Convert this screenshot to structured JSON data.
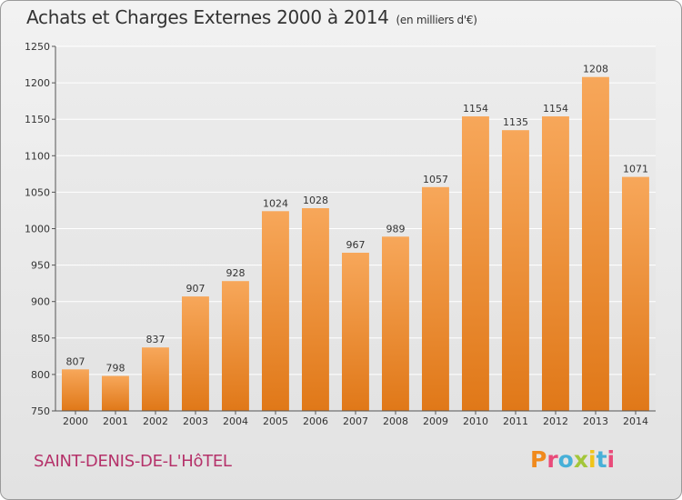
{
  "header": {
    "title": "Achats et Charges Externes 2000 à 2014",
    "unit": "(en milliers d'€)"
  },
  "footer": {
    "town": "SAINT-DENIS-DE-L'HôTEL",
    "brand": "Proxiti"
  },
  "colors": {
    "bar_top": "#f7a75a",
    "bar_bottom": "#e07818",
    "town": "#b5326a"
  },
  "chart_data": {
    "type": "bar",
    "title": "Achats et Charges Externes 2000 à 2014",
    "categories": [
      "2000",
      "2001",
      "2002",
      "2003",
      "2004",
      "2005",
      "2006",
      "2007",
      "2008",
      "2009",
      "2010",
      "2011",
      "2012",
      "2013",
      "2014"
    ],
    "values": [
      807,
      798,
      837,
      907,
      928,
      1024,
      1028,
      967,
      989,
      1057,
      1154,
      1135,
      1154,
      1208,
      1071
    ],
    "ylim": [
      750,
      1250
    ],
    "yticks": [
      750,
      800,
      850,
      900,
      950,
      1000,
      1050,
      1100,
      1150,
      1200,
      1250
    ],
    "grid": true,
    "data_labels": true
  }
}
